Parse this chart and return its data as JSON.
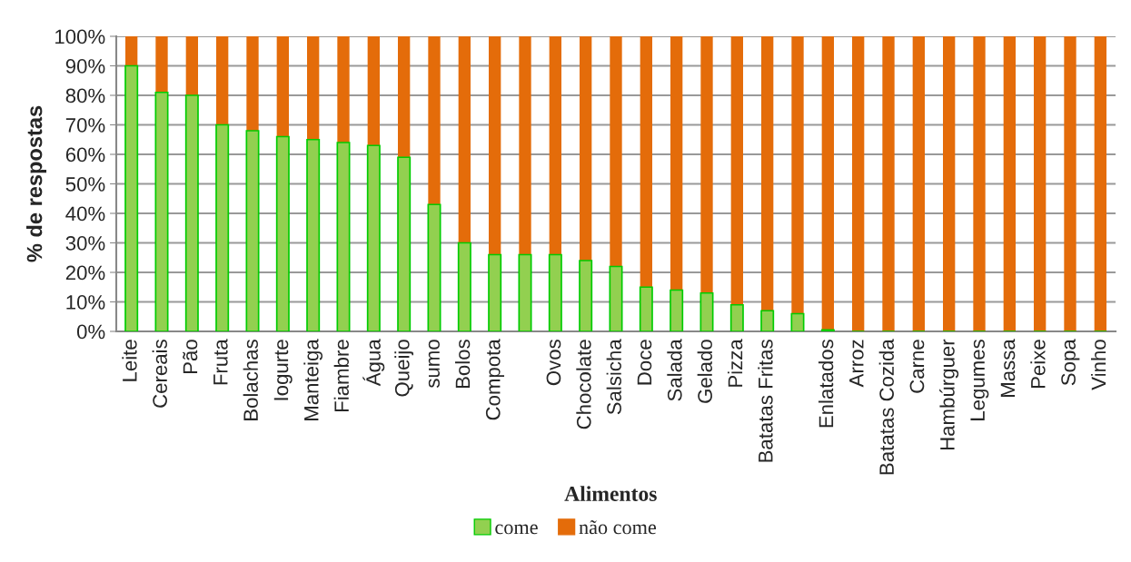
{
  "chart_data": {
    "type": "bar",
    "stacked": true,
    "xlabel": "Alimentos",
    "ylabel": "% de respostas",
    "categories": [
      "Leite",
      "Cereais",
      "Pão",
      "Fruta",
      "Bolachas",
      "Iogurte",
      "Manteiga",
      "Fiambre",
      "Água",
      "Queijo",
      "sumo",
      "Bolos",
      "Compota",
      null,
      "Ovos",
      "Chocolate",
      "Salsicha",
      "Doce",
      "Salada",
      "Gelado",
      "Pizza",
      "Batatas Fritas",
      null,
      "Enlatados",
      "Arroz",
      "Batatas Cozida",
      "Carne",
      "Hambúrguer",
      "Legumes",
      "Massa",
      "Peixe",
      "Sopa",
      "Vinho"
    ],
    "series": [
      {
        "name": "come",
        "color": "#92d050",
        "values": [
          90,
          81,
          80,
          70,
          68,
          66,
          65,
          64,
          63,
          59,
          43,
          30,
          26,
          26,
          26,
          24,
          22,
          15,
          14,
          13,
          9,
          7,
          6,
          0.5,
          0,
          0,
          0,
          0,
          0,
          0,
          0,
          0,
          0
        ]
      },
      {
        "name": "não come",
        "color": "#e46c0a",
        "values": [
          10,
          19,
          20,
          30,
          32,
          34,
          35,
          36,
          37,
          41,
          57,
          70,
          74,
          74,
          74,
          76,
          78,
          85,
          86,
          87,
          91,
          93,
          94,
          99.5,
          100,
          100,
          100,
          100,
          100,
          100,
          100,
          100,
          100
        ]
      }
    ],
    "ylim": [
      0,
      100
    ],
    "yticks": [
      {
        "value": 0,
        "label": "0%"
      },
      {
        "value": 10,
        "label": "10%"
      },
      {
        "value": 20,
        "label": "20%"
      },
      {
        "value": 30,
        "label": "30%"
      },
      {
        "value": 40,
        "label": "40%"
      },
      {
        "value": 50,
        "label": "50%"
      },
      {
        "value": 60,
        "label": "60%"
      },
      {
        "value": 70,
        "label": "70%"
      },
      {
        "value": 80,
        "label": "80%"
      },
      {
        "value": 90,
        "label": "90%"
      },
      {
        "value": 100,
        "label": "100%"
      }
    ],
    "grid": "y",
    "legend": "bottom"
  }
}
